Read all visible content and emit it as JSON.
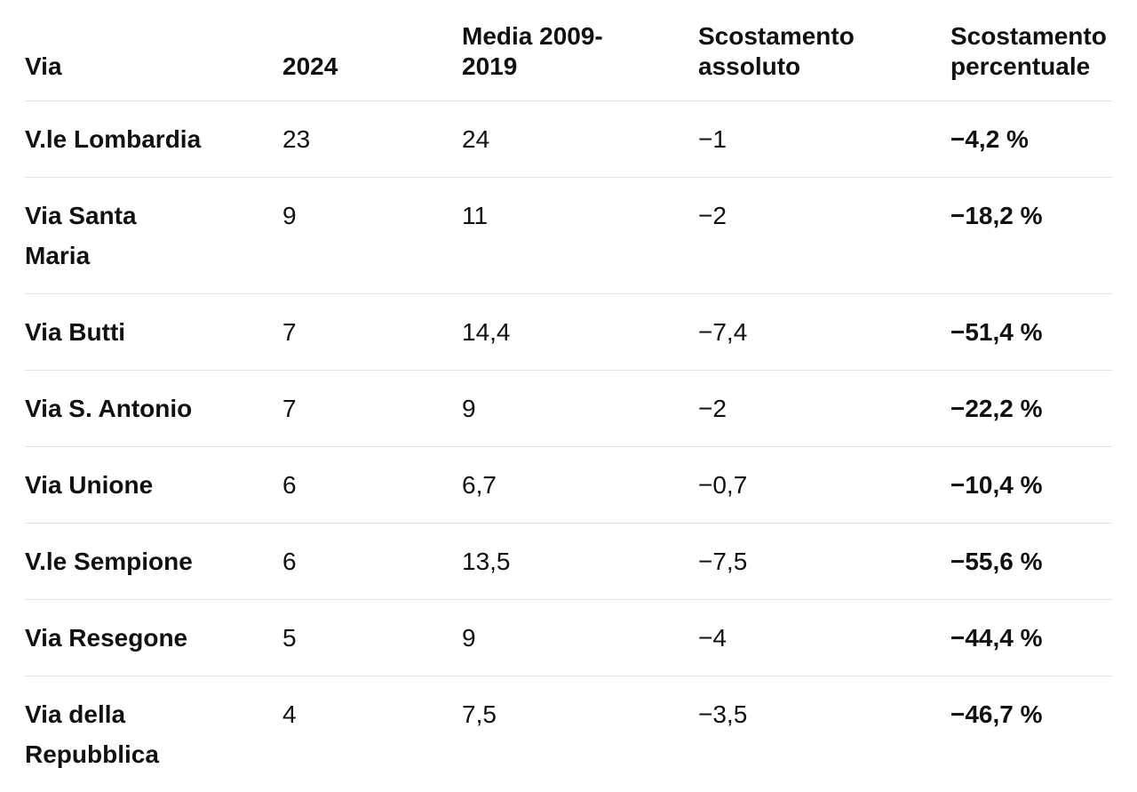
{
  "page": {
    "background": "#ffffff",
    "text_color": "#111111",
    "divider_color": "#e2e2e6"
  },
  "table": {
    "headers": [
      "Via",
      "2024",
      "Media 2009-2019",
      "Scostamento assoluto",
      "Scostamento percentuale"
    ],
    "rows": [
      [
        "V.le Lombardia",
        "23",
        "24",
        "−1",
        "−4,2 %"
      ],
      [
        "Via Santa Maria",
        "9",
        "11",
        "−2",
        "−18,2 %"
      ],
      [
        "Via Butti",
        "7",
        "14,4",
        "−7,4",
        "−51,4 %"
      ],
      [
        "Via S. Antonio",
        "7",
        "9",
        "−2",
        "−22,2 %"
      ],
      [
        "Via Unione",
        "6",
        "6,7",
        "−0,7",
        "−10,4 %"
      ],
      [
        "V.le Sempione",
        "6",
        "13,5",
        "−7,5",
        "−55,6 %"
      ],
      [
        "Via Resegone",
        "5",
        "9",
        "−4",
        "−44,4 %"
      ],
      [
        "Via della Repubblica",
        "4",
        "7,5",
        "−3,5",
        "−46,7 %"
      ]
    ]
  },
  "chart_data": {
    "type": "table",
    "title": "",
    "columns": [
      "Via",
      "2024",
      "Media 2009-2019",
      "Scostamento assoluto",
      "Scostamento percentuale"
    ],
    "rows": [
      {
        "via": "V.le Lombardia",
        "anno_2024": 23,
        "media_2009_2019": 24,
        "scostamento_assoluto": -1,
        "scostamento_percentuale": -4.2
      },
      {
        "via": "Via Santa Maria",
        "anno_2024": 9,
        "media_2009_2019": 11,
        "scostamento_assoluto": -2,
        "scostamento_percentuale": -18.2
      },
      {
        "via": "Via Butti",
        "anno_2024": 7,
        "media_2009_2019": 14.4,
        "scostamento_assoluto": -7.4,
        "scostamento_percentuale": -51.4
      },
      {
        "via": "Via S. Antonio",
        "anno_2024": 7,
        "media_2009_2019": 9,
        "scostamento_assoluto": -2,
        "scostamento_percentuale": -22.2
      },
      {
        "via": "Via Unione",
        "anno_2024": 6,
        "media_2009_2019": 6.7,
        "scostamento_assoluto": -0.7,
        "scostamento_percentuale": -10.4
      },
      {
        "via": "V.le Sempione",
        "anno_2024": 6,
        "media_2009_2019": 13.5,
        "scostamento_assoluto": -7.5,
        "scostamento_percentuale": -55.6
      },
      {
        "via": "Via Resegone",
        "anno_2024": 5,
        "media_2009_2019": 9,
        "scostamento_assoluto": -4,
        "scostamento_percentuale": -44.4
      },
      {
        "via": "Via della Repubblica",
        "anno_2024": 4,
        "media_2009_2019": 7.5,
        "scostamento_assoluto": -3.5,
        "scostamento_percentuale": -46.7
      }
    ],
    "notes": "Decimal comma formatting (it-IT); negative values use U+2212 minus; percentuale column shown bold with ' %' suffix"
  }
}
